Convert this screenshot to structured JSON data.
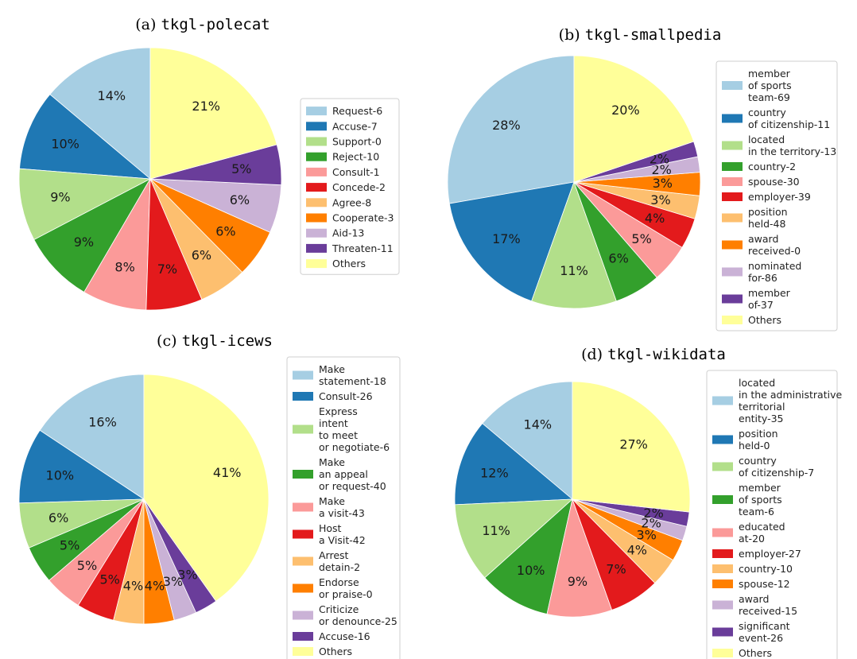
{
  "chart_data": [
    {
      "type": "pie",
      "title_prefix": "(a)",
      "title": "tkgl-polecat",
      "legend_placement": "right",
      "labels": [
        "Request-6",
        "Accuse-7",
        "Support-0",
        "Reject-10",
        "Consult-1",
        "Concede-2",
        "Agree-8",
        "Cooperate-3",
        "Aid-13",
        "Threaten-11",
        "Others"
      ],
      "values": [
        14,
        10,
        9,
        9,
        8,
        7,
        6,
        6,
        6,
        5,
        21
      ],
      "pct_labels": [
        "14%",
        "10%",
        "9%",
        "9%",
        "8%",
        "7%",
        "6%",
        "6%",
        "6%",
        "5%",
        "21%"
      ],
      "colors": [
        "#a6cee3",
        "#1f78b4",
        "#b2df8a",
        "#33a02c",
        "#fb9a99",
        "#e31a1c",
        "#fdbf6f",
        "#ff7f00",
        "#cab2d6",
        "#6a3d9a",
        "#ffff99"
      ]
    },
    {
      "type": "pie",
      "title_prefix": "(b)",
      "title": "tkgl-smallpedia",
      "legend_placement": "right",
      "labels": [
        "member\nof sports\nteam-69",
        "country\nof citizenship-11",
        "located\nin the territory-13",
        "country-2",
        "spouse-30",
        "employer-39",
        "position\nheld-48",
        "award\nreceived-0",
        "nominated\nfor-86",
        "member\nof-37",
        "Others"
      ],
      "values": [
        28,
        17,
        11,
        6,
        5,
        4,
        3,
        3,
        2,
        2,
        20
      ],
      "pct_labels": [
        "28%",
        "17%",
        "11%",
        "6%",
        "5%",
        "4%",
        "3%",
        "3%",
        "2%",
        "2%",
        "20%"
      ],
      "colors": [
        "#a6cee3",
        "#1f78b4",
        "#b2df8a",
        "#33a02c",
        "#fb9a99",
        "#e31a1c",
        "#fdbf6f",
        "#ff7f00",
        "#cab2d6",
        "#6a3d9a",
        "#ffff99"
      ]
    },
    {
      "type": "pie",
      "title_prefix": "(c)",
      "title": "tkgl-icews",
      "legend_placement": "right",
      "labels": [
        "Make\nstatement-18",
        "Consult-26",
        "Express\nintent\nto meet\nor negotiate-6",
        "Make\nan appeal\nor request-40",
        "Make\na visit-43",
        "Host\na Visit-42",
        "Arrest\ndetain-2",
        "Endorse\nor praise-0",
        "Criticize\nor denounce-25",
        "Accuse-16",
        "Others"
      ],
      "values": [
        16,
        10,
        6,
        5,
        5,
        5,
        4,
        4,
        3,
        3,
        41
      ],
      "pct_labels": [
        "16%",
        "10%",
        "6%",
        "5%",
        "5%",
        "5%",
        "4%",
        "4%",
        "3%",
        "3%",
        "41%"
      ],
      "colors": [
        "#a6cee3",
        "#1f78b4",
        "#b2df8a",
        "#33a02c",
        "#fb9a99",
        "#e31a1c",
        "#fdbf6f",
        "#ff7f00",
        "#cab2d6",
        "#6a3d9a",
        "#ffff99"
      ]
    },
    {
      "type": "pie",
      "title_prefix": "(d)",
      "title": "tkgl-wikidata",
      "legend_placement": "right",
      "labels": [
        "located\nin the administrative\nterritorial\nentity-35",
        "position\nheld-0",
        "country\nof citizenship-7",
        "member\nof sports\nteam-6",
        "educated\nat-20",
        "employer-27",
        "country-10",
        "spouse-12",
        "award\nreceived-15",
        "significant\nevent-26",
        "Others"
      ],
      "values": [
        14,
        12,
        11,
        10,
        9,
        7,
        4,
        3,
        2,
        2,
        27
      ],
      "pct_labels": [
        "14%",
        "12%",
        "11%",
        "10%",
        "9%",
        "7%",
        "4%",
        "3%",
        "2%",
        "2%",
        "27%"
      ],
      "colors": [
        "#a6cee3",
        "#1f78b4",
        "#b2df8a",
        "#33a02c",
        "#fb9a99",
        "#e31a1c",
        "#fdbf6f",
        "#ff7f00",
        "#cab2d6",
        "#6a3d9a",
        "#ffff99"
      ]
    }
  ]
}
